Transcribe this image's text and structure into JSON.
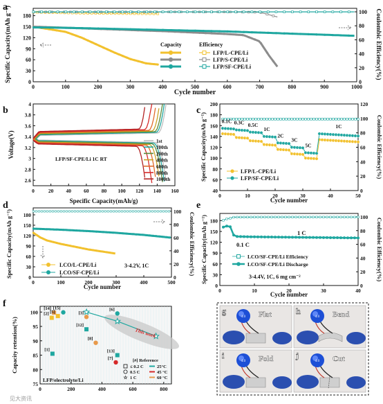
{
  "panels": {
    "a": "a",
    "b": "b",
    "c": "c",
    "d": "d",
    "e": "e",
    "f": "f",
    "g": "g",
    "h": "h",
    "i": "i",
    "j": "j"
  },
  "chart_data": [
    {
      "id": "a",
      "type": "line",
      "xlabel": "Cycle number",
      "ylabel": "Specific Capacity(mAh g⁻¹)",
      "y2label": "Coulombic Efficiency(%)",
      "xlim": [
        0,
        1000
      ],
      "ylim": [
        0,
        200
      ],
      "y2lim": [
        0,
        105
      ],
      "xticks": [
        0,
        100,
        200,
        300,
        400,
        500,
        600,
        700,
        800,
        900,
        1000
      ],
      "yticks": [
        0,
        30,
        60,
        90,
        120,
        150,
        180
      ],
      "y2ticks": [
        0,
        20,
        40,
        60,
        80,
        100
      ],
      "legend_head_capacity": "Capacity",
      "legend_head_efficiency": "Efficiency",
      "series": [
        {
          "name": "LFP/L-CPE/Li",
          "color": "#f2c12e",
          "axis": "left",
          "x": [
            1,
            50,
            100,
            150,
            200,
            250,
            300,
            350,
            385
          ],
          "y": [
            150,
            143,
            136,
            120,
            100,
            80,
            62,
            50,
            47
          ]
        },
        {
          "name": "LFP/S-CPE/Li",
          "color": "#8c8c8c",
          "axis": "left",
          "x": [
            1,
            100,
            200,
            300,
            400,
            500,
            600,
            650,
            700,
            730,
            760
          ],
          "y": [
            150,
            147,
            144,
            141,
            138,
            134,
            130,
            127,
            110,
            70,
            35
          ]
        },
        {
          "name": "LFP/SF-CPE/Li",
          "color": "#1fa7a0",
          "axis": "left",
          "x": [
            1,
            100,
            200,
            300,
            400,
            500,
            600,
            700,
            800,
            900,
            1000
          ],
          "y": [
            148,
            147,
            145,
            143,
            141,
            139,
            137,
            134,
            131,
            128,
            125
          ]
        },
        {
          "name": "LFP/L-CPE/Li",
          "color": "#f2c12e",
          "axis": "right",
          "x": [
            1,
            50,
            100,
            200,
            300,
            385
          ],
          "y": [
            99.5,
            99,
            98.5,
            97.8,
            97.5,
            97.2
          ]
        },
        {
          "name": "LFP/S-CPE/Li",
          "color": "#8c8c8c",
          "axis": "right",
          "x": [
            1,
            200,
            400,
            600,
            700,
            760
          ],
          "y": [
            99.8,
            99.8,
            99.8,
            99.8,
            99.4,
            92
          ]
        },
        {
          "name": "LFP/SF-CPE/Li",
          "color": "#1fa7a0",
          "axis": "right",
          "x": [
            1,
            200,
            400,
            600,
            800,
            1000
          ],
          "y": [
            99.9,
            99.9,
            99.9,
            99.9,
            99.9,
            99.9
          ]
        }
      ]
    },
    {
      "id": "b",
      "type": "line",
      "xlabel": "Specific Capacity(mAh/g)",
      "ylabel": "Voltage(V)",
      "xlim": [
        0,
        160
      ],
      "ylim": [
        2.5,
        4.0
      ],
      "xticks": [
        0,
        20,
        40,
        60,
        80,
        100,
        120,
        140,
        160
      ],
      "yticks": [
        2.6,
        2.8,
        3.0,
        3.2,
        3.4,
        3.6,
        3.8,
        4.0
      ],
      "annotation": "LFP/SF-CPE/Li 1C RT",
      "series": [
        {
          "name": "1st",
          "color": "#bdbdbd",
          "charge_cap": 150,
          "discharge_cap": 150
        },
        {
          "name": "100th",
          "color": "#1fa7a0",
          "charge_cap": 148,
          "discharge_cap": 148
        },
        {
          "name": "200th",
          "color": "#5c8a3a",
          "charge_cap": 146,
          "discharge_cap": 146
        },
        {
          "name": "400th",
          "color": "#c9a227",
          "charge_cap": 143,
          "discharge_cap": 143
        },
        {
          "name": "600th",
          "color": "#e06a2a",
          "charge_cap": 139,
          "discharge_cap": 139
        },
        {
          "name": "800th",
          "color": "#d62a2a",
          "charge_cap": 134,
          "discharge_cap": 134
        },
        {
          "name": "1000th",
          "color": "#b22222",
          "charge_cap": 127,
          "discharge_cap": 127
        }
      ]
    },
    {
      "id": "c",
      "type": "line",
      "xlabel": "Cycle number",
      "ylabel": "Specific Capacity(mAh g⁻¹)",
      "y2label": "Coulombic Efficiency(%)",
      "xlim": [
        0,
        50
      ],
      "ylim": [
        40,
        200
      ],
      "y2lim": [
        0,
        120
      ],
      "xticks": [
        0,
        10,
        20,
        30,
        40,
        50
      ],
      "yticks": [
        40,
        60,
        80,
        100,
        120,
        140,
        160,
        180,
        200
      ],
      "y2ticks": [
        0,
        20,
        40,
        60,
        80,
        100,
        120
      ],
      "rate_labels": [
        {
          "text": "0.1C",
          "x": 2.5
        },
        {
          "text": "0.3C",
          "x": 7
        },
        {
          "text": "0.5C",
          "x": 12
        },
        {
          "text": "1C",
          "x": 17
        },
        {
          "text": "2C",
          "x": 22
        },
        {
          "text": "3C",
          "x": 27
        },
        {
          "text": "5C",
          "x": 32
        },
        {
          "text": "1C",
          "x": 43
        }
      ],
      "series": [
        {
          "name": "LFP/L-CPE/Li",
          "color": "#f2c12e",
          "steps": [
            145,
            138,
            132,
            125,
            116,
            108,
            100,
            134
          ]
        },
        {
          "name": "LFP/SF-CPE/Li",
          "color": "#1fa7a0",
          "steps": [
            155,
            152,
            148,
            140,
            128,
            120,
            110,
            145
          ]
        }
      ],
      "efficiency": {
        "color": "#1fa7a0",
        "value": 99
      }
    },
    {
      "id": "d",
      "type": "line",
      "xlabel": "Cycle number",
      "ylabel": "Specific Capacity(mAh g⁻¹)",
      "y2label": "Coulombic Efficiency(%)",
      "xlim": [
        0,
        500
      ],
      "ylim": [
        0,
        200
      ],
      "y2lim": [
        0,
        105
      ],
      "xticks": [
        0,
        100,
        200,
        300,
        400,
        500
      ],
      "yticks": [
        0,
        30,
        60,
        90,
        120,
        150,
        180
      ],
      "y2ticks": [
        0,
        20,
        40,
        60,
        80,
        100
      ],
      "annotation": "3-4.2V, 1C",
      "series": [
        {
          "name": "LCO/L-CPE/Li",
          "color": "#f2c12e",
          "x": [
            1,
            25,
            50,
            100,
            150,
            200,
            250,
            300
          ],
          "y": [
            128,
            115,
            106,
            96,
            88,
            80,
            74,
            68
          ]
        },
        {
          "name": "LCO/SF-CPE/Li",
          "color": "#1fa7a0",
          "x": [
            1,
            100,
            200,
            300,
            400,
            500
          ],
          "y": [
            140,
            137,
            133,
            128,
            122,
            114
          ]
        }
      ],
      "efficiency": {
        "color": "#1fa7a0",
        "value": 99.8
      }
    },
    {
      "id": "e",
      "type": "line",
      "xlabel": "Cycle number",
      "ylabel": "Specific Capacity(mAh g⁻¹)",
      "y2label": "Coulombic Efficiency(%)",
      "xlim": [
        0,
        40
      ],
      "ylim": [
        0,
        200
      ],
      "y2lim": [
        0,
        105
      ],
      "xticks": [
        0,
        10,
        20,
        30,
        40
      ],
      "yticks": [
        0,
        30,
        60,
        90,
        120,
        150,
        180
      ],
      "y2ticks": [
        0,
        20,
        40,
        60,
        80,
        100
      ],
      "labels": {
        "slow": "0.1 C",
        "fast": "1 C"
      },
      "annotation": "3-4.4V, 1C, 6 mg cm⁻²",
      "series": [
        {
          "name": "LCO/SF-CPE/Li Efficiency",
          "color": "#1fa7a0",
          "x": [
            1,
            2,
            3,
            4,
            5,
            10,
            20,
            30,
            40
          ],
          "y": [
            95,
            97,
            98,
            99.5,
            99.6,
            99.7,
            99.7,
            99.7,
            99.7
          ]
        },
        {
          "name": "LCO/SF-CPE/Li Discharge",
          "color": "#1fa7a0",
          "x": [
            1,
            2,
            3,
            4,
            5,
            10,
            20,
            30,
            40
          ],
          "y": [
            162,
            165,
            163,
            140,
            136,
            135,
            134,
            133,
            132
          ]
        }
      ]
    },
    {
      "id": "f",
      "type": "scatter",
      "xlabel": "",
      "ylabel": "Capacity retention(%)",
      "xlim": [
        0,
        850
      ],
      "ylim": [
        75,
        102
      ],
      "xticks": [
        0,
        200,
        400,
        600,
        800
      ],
      "yticks": [
        75,
        80,
        85,
        90,
        95,
        100
      ],
      "annotation": "LFP/electrolyte/Li",
      "this_work_label": "This work",
      "legend_title": "[#] Reference",
      "legend_shapes": [
        "≤ 0.2 C",
        "0.5 C",
        "1 C"
      ],
      "legend_temps": [
        "25°C",
        "45 °C",
        "60 °C"
      ],
      "points": [
        {
          "ref": "[1]",
          "x": 80,
          "y": 85.5,
          "color": "#1fa7a0",
          "shape": "square"
        },
        {
          "ref": "[2]",
          "x": 75,
          "y": 98.0,
          "color": "#f2c12e",
          "shape": "square"
        },
        {
          "ref": "[14]",
          "x": 90,
          "y": 99.8,
          "color": "#e8994a",
          "shape": "square"
        },
        {
          "ref": "[5]",
          "x": 115,
          "y": 98.6,
          "color": "#f2c12e",
          "shape": "square"
        },
        {
          "ref": "[15]",
          "x": 150,
          "y": 99.9,
          "color": "#1fa7a0",
          "shape": "circle"
        },
        {
          "ref": "[3]",
          "x": 300,
          "y": 98.3,
          "color": "#e8994a",
          "shape": "circle"
        },
        {
          "ref": "[6]",
          "x": 500,
          "y": 99.5,
          "color": "#1fa7a0",
          "shape": "circle"
        },
        {
          "ref": "[8]",
          "x": 360,
          "y": 89.3,
          "color": "#e8994a",
          "shape": "circle"
        },
        {
          "ref": "[12]",
          "x": 300,
          "y": 94.0,
          "color": "#1fa7a0",
          "shape": "square"
        },
        {
          "ref": "[13]",
          "x": 500,
          "y": 85.0,
          "color": "#1fa7a0",
          "shape": "square"
        },
        {
          "ref": "[7]",
          "x": 490,
          "y": 82.5,
          "color": "#d62a2a",
          "shape": "circle"
        }
      ],
      "this_work": [
        {
          "x": 300,
          "y": 100
        },
        {
          "x": 500,
          "y": 96.8
        },
        {
          "x": 750,
          "y": 91.6
        }
      ]
    }
  ],
  "photos": [
    {
      "id": "g",
      "label": "Flat",
      "display": "4.0"
    },
    {
      "id": "h",
      "label": "Bend",
      "display": "4.0"
    },
    {
      "id": "i",
      "label": "Fold",
      "display": "4.0"
    },
    {
      "id": "j",
      "label": "Cut",
      "display": "4.0"
    }
  ],
  "watermark": "见大资讯"
}
